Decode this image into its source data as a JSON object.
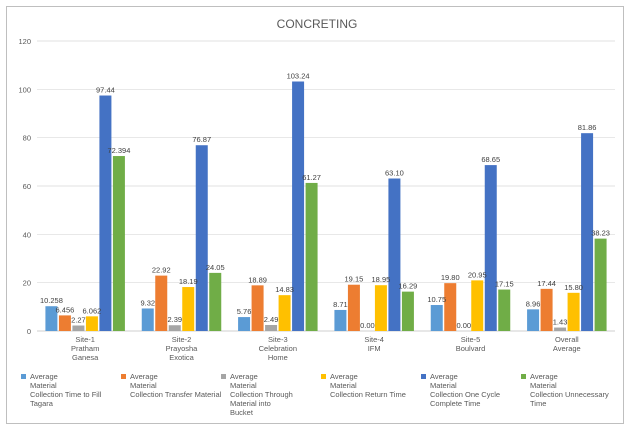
{
  "chart_data": {
    "type": "bar",
    "title": "CONCRETING",
    "ylim": [
      0,
      120
    ],
    "yticks": [
      0,
      20,
      40,
      60,
      80,
      100,
      120
    ],
    "categories": [
      [
        "Site-1",
        "Pratham",
        "Ganesa"
      ],
      [
        "Site-2",
        "Prayosha",
        "Exotica"
      ],
      [
        "Site-3",
        "Celebration",
        "Home"
      ],
      [
        "Site-4",
        "IFM"
      ],
      [
        "Site-5",
        "Boulvard"
      ],
      [
        "Overall",
        "Average"
      ]
    ],
    "series": [
      {
        "name": [
          "Average",
          "Material",
          "Collection Time to Fill",
          "Tagara"
        ],
        "color": "#5b9bd5",
        "values": [
          10.258,
          9.32,
          5.76,
          8.71,
          10.75,
          8.96
        ],
        "labels": [
          "10.258",
          "9.32",
          "5.76",
          "8.71",
          "10.75",
          "8.96"
        ]
      },
      {
        "name": [
          "Average",
          "Material",
          "Collection Transfer Material"
        ],
        "color": "#ed7d31",
        "values": [
          6.456,
          22.92,
          18.89,
          19.15,
          19.8,
          17.44
        ],
        "labels": [
          "6.456",
          "22.92",
          "18.89",
          "19.15",
          "19.80",
          "17.44"
        ]
      },
      {
        "name": [
          "Average",
          "Material",
          "Collection Through",
          "Material into",
          "Bucket"
        ],
        "color": "#a5a5a5",
        "values": [
          2.27,
          2.39,
          2.49,
          0.0,
          0.0,
          1.43
        ],
        "labels": [
          "2.27",
          "2.39",
          "2.49",
          "0.00",
          "0.00",
          "1.43"
        ]
      },
      {
        "name": [
          "Average",
          "Material",
          "Collection Return Time"
        ],
        "color": "#ffc000",
        "values": [
          6.062,
          18.19,
          14.83,
          18.95,
          20.95,
          15.8
        ],
        "labels": [
          "6.062",
          "18.19",
          "14.83",
          "18.95",
          "20.95",
          "15.80"
        ]
      },
      {
        "name": [
          "Average",
          "Material",
          "Collection One Cycle Complete Time"
        ],
        "color": "#4472c4",
        "values": [
          97.44,
          76.87,
          103.24,
          63.1,
          68.65,
          81.86
        ],
        "labels": [
          "97.44",
          "76.87",
          "103.24",
          "63.10",
          "68.65",
          "81.86"
        ]
      },
      {
        "name": [
          "Average",
          "Material",
          "Collection Unnecessary",
          "Time"
        ],
        "color": "#70ad47",
        "values": [
          72.394,
          24.05,
          61.27,
          16.29,
          17.15,
          38.23
        ],
        "labels": [
          "72.394",
          "24.05",
          "61.27",
          "16.29",
          "17.15",
          "38.23"
        ]
      }
    ],
    "grid": true,
    "legend_position": "bottom"
  }
}
